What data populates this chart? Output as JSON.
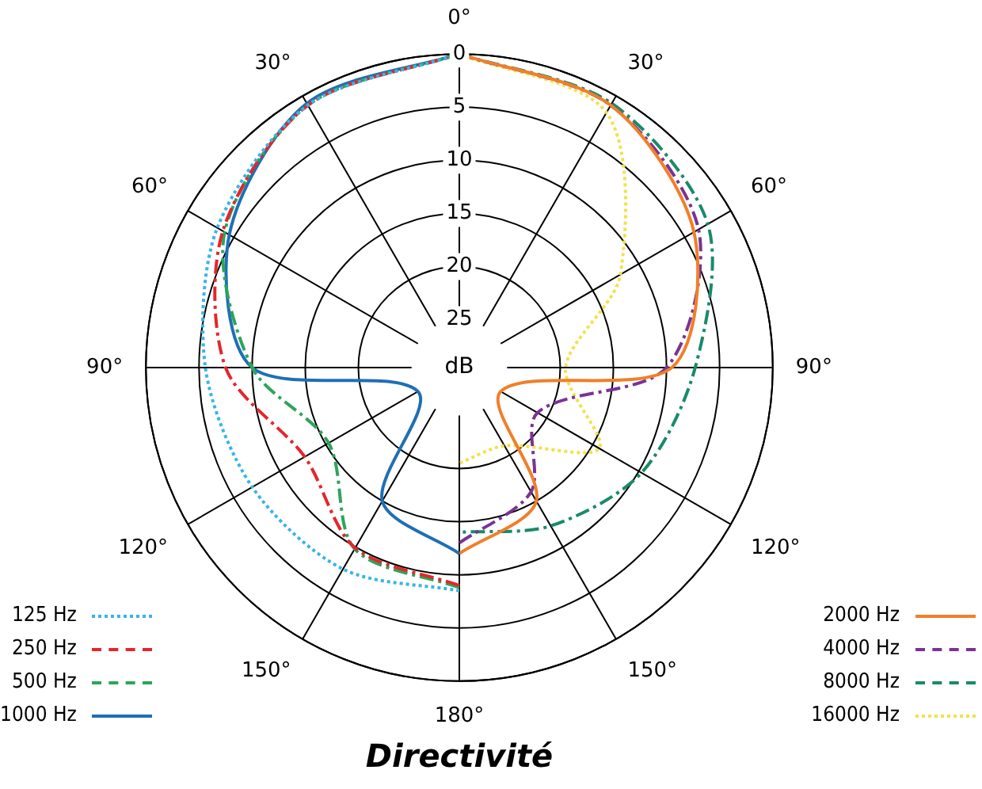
{
  "chart_data": {
    "type": "radar",
    "title": "Directivité",
    "ylabel": "dB",
    "categories": [
      "0°",
      "30°",
      "60°",
      "90°",
      "120°",
      "150°",
      "180°",
      "150°",
      "120°",
      "90°",
      "60°",
      "30°"
    ],
    "ylim": [
      29.5,
      0
    ],
    "yticks": [
      0,
      5,
      10,
      15,
      20,
      25
    ],
    "grid": true,
    "legend": "bottom",
    "series": [
      {
        "name": "125 Hz",
        "color": "#3ab4e6",
        "line_style": "dotted",
        "values": [
          0,
          null,
          null,
          null,
          null,
          null,
          8.5,
          7.6,
          7,
          5.6,
          3.2,
          1
        ]
      },
      {
        "name": "250 Hz",
        "color": "#e3262b",
        "line_style": "dashed",
        "values": [
          0,
          null,
          null,
          null,
          null,
          null,
          9,
          9.9,
          12.7,
          7.5,
          3.8,
          1
        ]
      },
      {
        "name": "500 Hz",
        "color": "#2ca55a",
        "line_style": "dashed",
        "values": [
          0,
          null,
          null,
          null,
          null,
          null,
          8.8,
          9.8,
          15.3,
          10,
          4,
          1
        ]
      },
      {
        "name": "1000 Hz",
        "color": "#1f6fb5",
        "line_style": "solid",
        "values": [
          0,
          null,
          null,
          null,
          null,
          null,
          12,
          15,
          25,
          10,
          4.5,
          0.8
        ]
      },
      {
        "name": "2000 Hz",
        "color": "#f07f2a",
        "line_style": "solid",
        "values": [
          0,
          1,
          4,
          9.5,
          25,
          15,
          12,
          null,
          null,
          null,
          null,
          null
        ]
      },
      {
        "name": "4000 Hz",
        "color": "#7b3294",
        "line_style": "dashed",
        "values": [
          0,
          1,
          3.5,
          10,
          21,
          16,
          13,
          null,
          null,
          null,
          null,
          null
        ]
      },
      {
        "name": "8000 Hz",
        "color": "#1a8a6a",
        "line_style": "dashed",
        "values": [
          0,
          0.8,
          2.5,
          7.3,
          9.7,
          12.3,
          14,
          null,
          null,
          null,
          null,
          null
        ]
      },
      {
        "name": "16000 Hz",
        "color": "#f2e14c",
        "line_style": "dotted",
        "values": [
          0,
          1.8,
          12,
          19.5,
          14.3,
          21,
          20.5,
          null,
          null,
          null,
          null,
          null
        ]
      }
    ]
  }
}
